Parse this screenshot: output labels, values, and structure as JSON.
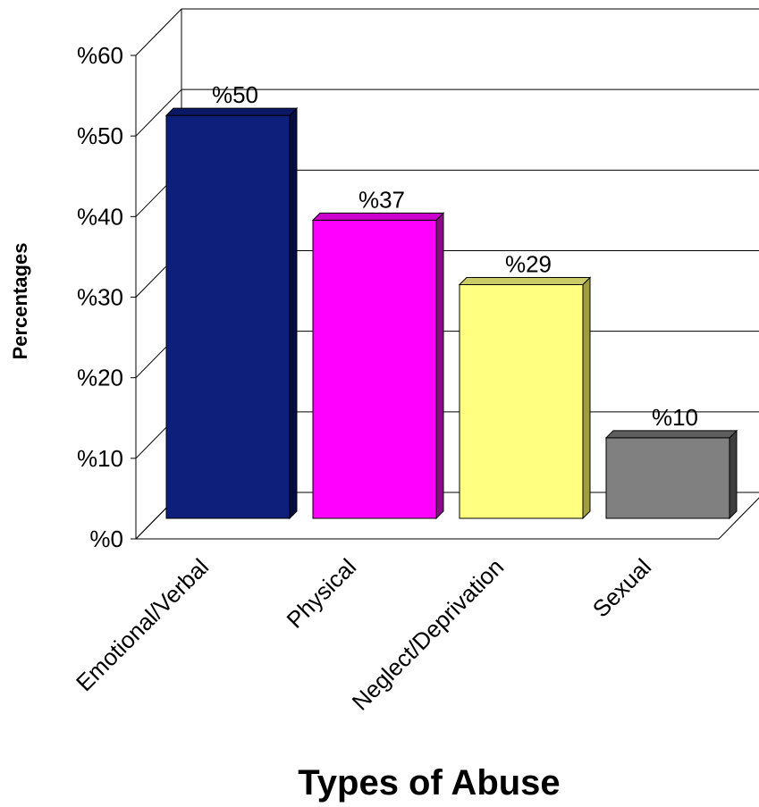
{
  "chart_data": {
    "type": "bar",
    "categories": [
      "Emotional/Verbal",
      "Physical",
      "Neglect/Deprivation",
      "Sexual"
    ],
    "values": [
      50,
      37,
      29,
      10
    ],
    "data_labels": [
      "%50",
      "%37",
      "%29",
      "%10"
    ],
    "colors": [
      "#0D1F7A",
      "#FF00FF",
      "#FFFF80",
      "#808080"
    ],
    "side_colors": [
      "#050E42",
      "#8A0A8A",
      "#9E9E3E",
      "#3E3E3E"
    ],
    "top_colors": [
      "#0A1866",
      "#CC00CC",
      "#CCCC66",
      "#5E5E5E"
    ],
    "ylim": [
      0,
      60
    ],
    "yticks": [
      0,
      10,
      20,
      30,
      40,
      50,
      60
    ],
    "ytick_labels": [
      "%0",
      "%10",
      "%20",
      "%30",
      "%40",
      "%50",
      "%60"
    ],
    "xlabel": "Types of Abuse",
    "ylabel": "Percentages",
    "title": "",
    "grid": true,
    "style": "3d",
    "legend": "none"
  }
}
